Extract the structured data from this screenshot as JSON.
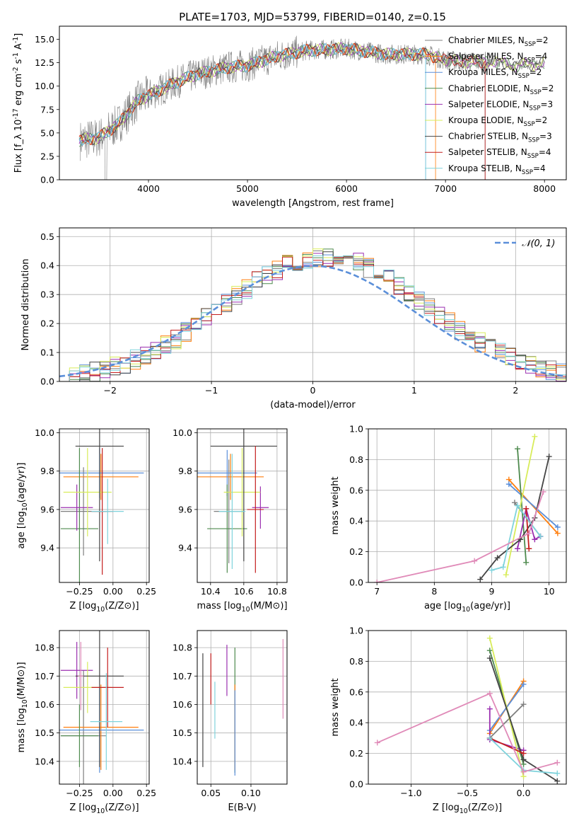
{
  "figure_title": "PLATE=1703, MJD=53799, FIBERID=0140, z=0.15",
  "models": [
    {
      "name": "Chabrier MILES, N_{SSP}=2",
      "color": "#7f7f7f"
    },
    {
      "name": "Salpeter MILES, N_{SSP}=4",
      "color": "#ff7f0e"
    },
    {
      "name": "Kroupa MILES, N_{SSP}=2",
      "color": "#5b8fd9"
    },
    {
      "name": "Chabrier ELODIE, N_{SSP}=2",
      "color": "#4e8a4e"
    },
    {
      "name": "Salpeter ELODIE, N_{SSP}=3",
      "color": "#9b2fb0"
    },
    {
      "name": "Kroupa ELODIE, N_{SSP}=2",
      "color": "#d8ec5a"
    },
    {
      "name": "Chabrier STELIB, N_{SSP}=3",
      "color": "#444444"
    },
    {
      "name": "Salpeter STELIB, N_{SSP}=4",
      "color": "#c41e1e"
    },
    {
      "name": "Kroupa STELIB, N_{SSP}=4",
      "color": "#7fd3dc"
    }
  ],
  "chart_data": [
    {
      "id": "spectrum",
      "type": "line",
      "xlabel": "wavelength [Angstrom, rest frame]",
      "ylabel": "Flux [f_λ 10^{-17} erg cm^{-2} s^{-1} A^{-1}]",
      "xlim": [
        3100,
        8220
      ],
      "ylim": [
        0,
        16.4
      ],
      "xticks": [
        4000,
        5000,
        6000,
        7000,
        8000
      ],
      "yticks": [
        0.0,
        2.5,
        5.0,
        7.5,
        10.0,
        12.5,
        15.0
      ],
      "ytick_labels": [
        "0.0",
        "2.5",
        "5.0",
        "7.5",
        "10.0",
        "12.5",
        "15.0"
      ],
      "continuum": {
        "x": [
          3300,
          3500,
          3700,
          3900,
          4100,
          4300,
          4500,
          4800,
          5000,
          5300,
          5600,
          6000,
          6400,
          6800,
          7000,
          7200,
          7500,
          7700,
          8000
        ],
        "y": [
          4.2,
          4.5,
          6.0,
          8.5,
          9.5,
          10.5,
          11.3,
          12.0,
          12.2,
          13.2,
          13.8,
          14.0,
          13.4,
          13.4,
          12.8,
          12.6,
          12.6,
          12.2,
          12.4
        ]
      },
      "data_ragged_wavelength_max": 7450,
      "model_cutoffs": [
        7400,
        6900,
        6800,
        null,
        null,
        null,
        null,
        7400,
        6800
      ],
      "legend_loc": "upper right",
      "grid": false
    },
    {
      "id": "residual_hist",
      "type": "step",
      "xlabel": "(data-model)/error",
      "ylabel": "Normed distribution",
      "xlim": [
        -2.5,
        2.5
      ],
      "ylim": [
        0,
        0.53
      ],
      "xticks": [
        -2,
        -1,
        0,
        1,
        2
      ],
      "xtick_labels": [
        "−2",
        "−1",
        "0",
        "1",
        "2"
      ],
      "yticks": [
        0.0,
        0.1,
        0.2,
        0.3,
        0.4,
        0.5
      ],
      "ytick_labels": [
        "0.0",
        "0.1",
        "0.2",
        "0.3",
        "0.4",
        "0.5"
      ],
      "bin_width": 0.1,
      "reference_curve": "N(0,1)",
      "reference_label": "𝒩(0, 1)",
      "legend_loc": "upper right",
      "grid": true
    },
    {
      "id": "age_vs_Z",
      "type": "errorbar",
      "xlabel": "Z [log10(Z/Z⊙)]",
      "ylabel": "age  [log10(age/yr)]",
      "xlim": [
        -0.4,
        0.27
      ],
      "ylim": [
        9.22,
        10.02
      ],
      "xticks": [
        -0.25,
        0.0,
        0.25
      ],
      "xtick_labels": [
        "−0.25",
        "0.00",
        "0.25"
      ],
      "yticks": [
        9.4,
        9.6,
        9.8,
        10.0
      ],
      "ytick_labels": [
        "9.4",
        "9.6",
        "9.8",
        "10.0"
      ],
      "points": [
        {
          "m": 0,
          "x": -0.22,
          "xerr": 0.17,
          "y": 9.59,
          "yerr": 0.23
        },
        {
          "m": 1,
          "x": -0.09,
          "xerr": 0.28,
          "y": 9.77,
          "yerr": 0.12
        },
        {
          "m": 2,
          "x": -0.1,
          "xerr": 0.33,
          "y": 9.79,
          "yerr": 0.13
        },
        {
          "m": 3,
          "x": -0.25,
          "xerr": 0.14,
          "y": 9.5,
          "yerr": 0.42
        },
        {
          "m": 4,
          "x": -0.27,
          "xerr": 0.12,
          "y": 9.61,
          "yerr": 0.12
        },
        {
          "m": 5,
          "x": -0.19,
          "xerr": 0.18,
          "y": 9.69,
          "yerr": 0.23
        },
        {
          "m": 6,
          "x": -0.1,
          "xerr": 0.18,
          "y": 9.93,
          "yerr": 0.6
        },
        {
          "m": 7,
          "x": -0.08,
          "xerr": 0.08,
          "y": 9.59,
          "yerr": 0.33
        },
        {
          "m": 8,
          "x": -0.04,
          "xerr": 0.12,
          "y": 9.59,
          "yerr": 0.17
        }
      ],
      "grid": true
    },
    {
      "id": "age_vs_mass",
      "type": "errorbar",
      "xlabel": "mass [log10(M/M⊙)]",
      "ylabel": "",
      "xlim": [
        10.32,
        10.86
      ],
      "ylim": [
        9.22,
        10.02
      ],
      "xticks": [
        10.4,
        10.6,
        10.8
      ],
      "xtick_labels": [
        "10.4",
        "10.6",
        "10.8"
      ],
      "yticks": [
        9.4,
        9.6,
        9.8,
        10.0
      ],
      "ytick_labels": [
        "9.4",
        "9.6",
        "9.8",
        "10.0"
      ],
      "points": [
        {
          "m": 0,
          "x": 10.51,
          "xerr": 0.09,
          "y": 9.59,
          "yerr": 0.27
        },
        {
          "m": 1,
          "x": 10.52,
          "xerr": 0.2,
          "y": 9.77,
          "yerr": 0.12
        },
        {
          "m": 2,
          "x": 10.5,
          "xerr": 0.18,
          "y": 9.79,
          "yerr": 0.12
        },
        {
          "m": 3,
          "x": 10.5,
          "xerr": 0.12,
          "y": 9.5,
          "yerr": 0.23
        },
        {
          "m": 4,
          "x": 10.7,
          "xerr": 0.05,
          "y": 9.61,
          "yerr": 0.11
        },
        {
          "m": 5,
          "x": 10.59,
          "xerr": 0.11,
          "y": 9.69,
          "yerr": 0.23
        },
        {
          "m": 6,
          "x": 10.6,
          "xerr": 0.2,
          "y": 9.93,
          "yerr": 0.6
        },
        {
          "m": 7,
          "x": 10.67,
          "xerr": 0.05,
          "y": 9.6,
          "yerr": 0.33
        },
        {
          "m": 8,
          "x": 10.53,
          "xerr": 0.08,
          "y": 9.59,
          "yerr": 0.3
        }
      ],
      "grid": true
    },
    {
      "id": "weight_vs_age",
      "type": "line",
      "xlabel": "age  [log10(age/yr)]",
      "ylabel": "mass weight",
      "xlim": [
        6.85,
        10.3
      ],
      "ylim": [
        0,
        1.0
      ],
      "xticks": [
        7,
        8,
        9,
        10
      ],
      "xtick_labels": [
        "7",
        "8",
        "9",
        "10"
      ],
      "yticks": [
        0.0,
        0.2,
        0.4,
        0.6,
        0.8,
        1.0
      ],
      "ytick_labels": [
        "0.0",
        "0.2",
        "0.4",
        "0.6",
        "0.8",
        "1.0"
      ],
      "series": [
        {
          "m": 0,
          "x": [
            9.85,
            9.4
          ],
          "y": [
            0.3,
            0.52
          ]
        },
        {
          "m": 1,
          "x": [
            9.3,
            10.15
          ],
          "y": [
            0.67,
            0.32
          ]
        },
        {
          "m": 2,
          "x": [
            9.3,
            10.15
          ],
          "y": [
            0.64,
            0.36
          ]
        },
        {
          "m": 3,
          "x": [
            9.45,
            9.6
          ],
          "y": [
            0.87,
            0.13
          ]
        },
        {
          "m": 4,
          "x": [
            9.45,
            9.6,
            9.75,
            9.85
          ],
          "y": [
            0.22,
            0.48,
            0.28,
            0.3
          ]
        },
        {
          "m": 5,
          "x": [
            9.25,
            9.75
          ],
          "y": [
            0.05,
            0.95
          ]
        },
        {
          "m": 6,
          "x": [
            8.8,
            9.1,
            9.5,
            9.75,
            10.0
          ],
          "y": [
            0.02,
            0.16,
            0.28,
            0.42,
            0.82
          ]
        },
        {
          "m": 7,
          "x": [
            9.6,
            9.65
          ],
          "y": [
            0.48,
            0.22
          ]
        },
        {
          "m": 8,
          "x": [
            9.0,
            9.2,
            9.45,
            9.85
          ],
          "y": [
            0.08,
            0.1,
            0.5,
            0.3
          ]
        },
        {
          "m": 9,
          "x": [
            7.0,
            8.7,
            9.65,
            9.9
          ],
          "y": [
            0.0,
            0.14,
            0.32,
            0.59
          ],
          "color": "#e08ab8"
        }
      ],
      "grid": true
    },
    {
      "id": "mass_vs_Z",
      "type": "errorbar",
      "xlabel": "Z [log10(Z/Z⊙)]",
      "ylabel": "mass [log10(M/M⊙)]",
      "xlim": [
        -0.4,
        0.27
      ],
      "ylim": [
        10.32,
        10.86
      ],
      "xticks": [
        -0.25,
        0.0,
        0.25
      ],
      "xtick_labels": [
        "−0.25",
        "0.00",
        "0.25"
      ],
      "yticks": [
        10.4,
        10.5,
        10.6,
        10.7,
        10.8
      ],
      "ytick_labels": [
        "10.4",
        "10.5",
        "10.6",
        "10.7",
        "10.8"
      ],
      "points": [
        {
          "m": 0,
          "x": -0.22,
          "xerr": 0.17,
          "y": 10.49,
          "yerr": 0.23
        },
        {
          "m": 1,
          "x": -0.09,
          "xerr": 0.28,
          "y": 10.52,
          "yerr": 0.15
        },
        {
          "m": 2,
          "x": -0.1,
          "xerr": 0.33,
          "y": 10.51,
          "yerr": 0.15
        },
        {
          "m": 3,
          "x": -0.25,
          "xerr": 0.14,
          "y": 10.49,
          "yerr": 0.11
        },
        {
          "m": 4,
          "x": -0.27,
          "xerr": 0.12,
          "y": 10.72,
          "yerr": 0.1
        },
        {
          "m": 5,
          "x": -0.19,
          "xerr": 0.18,
          "y": 10.66,
          "yerr": 0.09
        },
        {
          "m": 6,
          "x": -0.1,
          "xerr": 0.18,
          "y": 10.7,
          "yerr": 0.32
        },
        {
          "m": 7,
          "x": -0.04,
          "xerr": 0.12,
          "y": 10.66,
          "yerr": 0.14
        },
        {
          "m": 8,
          "x": -0.05,
          "xerr": 0.12,
          "y": 10.54,
          "yerr": 0.17
        },
        {
          "m": 9,
          "x": -0.24,
          "xerr": 0.02,
          "y": 10.7,
          "yerr": 0.12,
          "color": "#e08ab8"
        }
      ],
      "grid": true
    },
    {
      "id": "mass_vs_ebv",
      "type": "errorbar",
      "xlabel": "E(B-V)",
      "ylabel": "",
      "xlim": [
        0.033,
        0.145
      ],
      "ylim": [
        10.32,
        10.86
      ],
      "xticks": [
        0.05,
        0.1
      ],
      "xtick_labels": [
        "0.05",
        "0.10"
      ],
      "yticks": [
        10.4,
        10.5,
        10.6,
        10.7,
        10.8
      ],
      "ytick_labels": [
        "10.4",
        "10.5",
        "10.6",
        "10.7",
        "10.8"
      ],
      "points": [
        {
          "m": 6,
          "x": 0.04,
          "xerr": 0,
          "y": 10.58,
          "yerr": 0.2
        },
        {
          "m": 7,
          "x": 0.05,
          "xerr": 0,
          "y": 10.69,
          "yerr": 0.09
        },
        {
          "m": 8,
          "x": 0.055,
          "xerr": 0,
          "y": 10.58,
          "yerr": 0.1
        },
        {
          "m": 4,
          "x": 0.07,
          "xerr": 0,
          "y": 10.72,
          "yerr": 0.09
        },
        {
          "m": 3,
          "x": 0.08,
          "xerr": 0,
          "y": 10.58,
          "yerr": 0.22
        },
        {
          "m": 1,
          "x": 0.08,
          "xerr": 0,
          "y": 10.52,
          "yerr": 0.15
        },
        {
          "m": 2,
          "x": 0.08,
          "xerr": 0,
          "y": 10.5,
          "yerr": 0.15
        },
        {
          "m": 9,
          "x": 0.14,
          "xerr": 0,
          "y": 10.69,
          "yerr": 0.14,
          "color": "#e08ab8"
        }
      ],
      "grid": true
    },
    {
      "id": "weight_vs_Z",
      "type": "line",
      "xlabel": "Z [log10(Z/Z⊙)]",
      "ylabel": "mass weight",
      "xlim": [
        -1.38,
        0.38
      ],
      "ylim": [
        0,
        1.0
      ],
      "xticks": [
        -1.0,
        -0.5,
        0.0
      ],
      "xtick_labels": [
        "−1.0",
        "−0.5",
        "0.0"
      ],
      "yticks": [
        0.0,
        0.2,
        0.4,
        0.6,
        0.8,
        1.0
      ],
      "ytick_labels": [
        "0.0",
        "0.2",
        "0.4",
        "0.6",
        "0.8",
        "1.0"
      ],
      "series": [
        {
          "m": 0,
          "x": [
            -0.3,
            0.0
          ],
          "y": [
            0.3,
            0.52
          ]
        },
        {
          "m": 1,
          "x": [
            -0.3,
            0.0
          ],
          "y": [
            0.33,
            0.67
          ]
        },
        {
          "m": 2,
          "x": [
            -0.3,
            0.0
          ],
          "y": [
            0.35,
            0.65
          ]
        },
        {
          "m": 3,
          "x": [
            -0.3,
            0.0
          ],
          "y": [
            0.87,
            0.13
          ]
        },
        {
          "m": 4,
          "x": [
            -0.3,
            -0.3,
            0.0
          ],
          "y": [
            0.49,
            0.29,
            0.22
          ]
        },
        {
          "m": 5,
          "x": [
            -0.3,
            0.0
          ],
          "y": [
            0.95,
            0.05
          ]
        },
        {
          "m": 6,
          "x": [
            -0.3,
            0.0,
            0.3
          ],
          "y": [
            0.82,
            0.16,
            0.02
          ]
        },
        {
          "m": 7,
          "x": [
            -0.3,
            0.0
          ],
          "y": [
            0.3,
            0.2
          ]
        },
        {
          "m": 8,
          "x": [
            -0.3,
            0.0,
            0.3
          ],
          "y": [
            0.3,
            0.09,
            0.07
          ]
        },
        {
          "m": 9,
          "x": [
            -1.3,
            -0.3,
            0.0,
            0.3
          ],
          "y": [
            0.27,
            0.59,
            0.08,
            0.14
          ],
          "color": "#e08ab8"
        }
      ],
      "grid": true
    }
  ]
}
